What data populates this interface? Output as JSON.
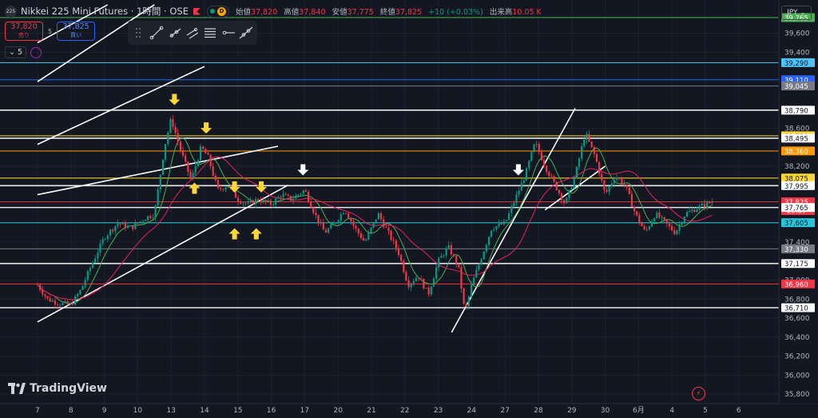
{
  "header": {
    "logo_text": "225",
    "symbol": "Nikkei 225 Mini Futures · 1時間 · OSE",
    "badge": "D",
    "open_label": "始値",
    "open": "37,820",
    "high_label": "高値",
    "high": "37,840",
    "low_label": "安値",
    "low": "37,775",
    "close_label": "終値",
    "close": "37,825",
    "change": "+10 (+0.03%)",
    "volume_label": "出来高",
    "volume": "10.05 K"
  },
  "trade": {
    "sell_price": "37,820",
    "sell_label": "売り",
    "spread": "5",
    "buy_price": "37,825",
    "buy_label": "買い"
  },
  "indicators": {
    "label": "5"
  },
  "currency": "JPY",
  "brand": "TradingView",
  "colors": {
    "background": "#131722",
    "up": "#089981",
    "down": "#f23645",
    "ma_fast": "#4caf50",
    "ma_slow": "#e91e63"
  },
  "chart_data": {
    "type": "candlestick",
    "y_range": [
      35700,
      39950
    ],
    "x_range": [
      0,
      22.2
    ],
    "x_ticks": [
      {
        "x": 0,
        "label": "7"
      },
      {
        "x": 1,
        "label": "8"
      },
      {
        "x": 2,
        "label": "9"
      },
      {
        "x": 3,
        "label": "10"
      },
      {
        "x": 4,
        "label": "13"
      },
      {
        "x": 5,
        "label": "14"
      },
      {
        "x": 6,
        "label": "15"
      },
      {
        "x": 7,
        "label": "16"
      },
      {
        "x": 8,
        "label": "17"
      },
      {
        "x": 9,
        "label": "20"
      },
      {
        "x": 10,
        "label": "21"
      },
      {
        "x": 11,
        "label": "22"
      },
      {
        "x": 12,
        "label": "23"
      },
      {
        "x": 13,
        "label": "24"
      },
      {
        "x": 14,
        "label": "27"
      },
      {
        "x": 15,
        "label": "28"
      },
      {
        "x": 16,
        "label": "29"
      },
      {
        "x": 17,
        "label": "30"
      },
      {
        "x": 18,
        "label": "6月"
      },
      {
        "x": 19,
        "label": "4"
      },
      {
        "x": 20,
        "label": "5"
      },
      {
        "x": 21,
        "label": "6"
      }
    ],
    "y_ticks": [
      39600,
      39400,
      38800,
      38600,
      38200,
      38000,
      37800,
      37600,
      37400,
      37000,
      36800,
      36600,
      36400,
      36200,
      36000,
      35800
    ],
    "axis_labels": [
      {
        "label": "39,765",
        "value": 39765,
        "color": "#4caf50"
      },
      {
        "label": "39,290",
        "value": 39290,
        "color": "#4fc3f7"
      },
      {
        "label": "39,110",
        "value": 39110,
        "color": "#2962ff"
      },
      {
        "label": "39,045",
        "value": 39045,
        "color": "#787b86"
      },
      {
        "label": "38,790",
        "value": 38790,
        "color": "#ffffff"
      },
      {
        "label": "38,520",
        "value": 38520,
        "color": "#fdd835"
      },
      {
        "label": "38,495",
        "value": 38495,
        "color": "#ffffff"
      },
      {
        "label": "38,360",
        "value": 38360,
        "color": "#ff9800"
      },
      {
        "label": "38,075",
        "value": 38075,
        "color": "#fdd835"
      },
      {
        "label": "37,995",
        "value": 37995,
        "color": "#ffffff"
      },
      {
        "label": "37,825",
        "value": 37825,
        "color": "#f23645",
        "sub": "29:37"
      },
      {
        "label": "37,765",
        "value": 37765,
        "color": "#ffffff"
      },
      {
        "label": "37,605",
        "value": 37605,
        "color": "#26c6da"
      },
      {
        "label": "37,330",
        "value": 37330,
        "color": "#787b86"
      },
      {
        "label": "37,175",
        "value": 37175,
        "color": "#ffffff"
      },
      {
        "label": "36,960",
        "value": 36960,
        "color": "#f23645"
      },
      {
        "label": "36,710",
        "value": 36710,
        "color": "#ffffff"
      }
    ],
    "price_points": [
      [
        0.0,
        36950
      ],
      [
        0.3,
        36800
      ],
      [
        0.6,
        36760
      ],
      [
        1.0,
        36740
      ],
      [
        1.3,
        36900
      ],
      [
        1.6,
        37150
      ],
      [
        2.0,
        37450
      ],
      [
        2.4,
        37600
      ],
      [
        2.8,
        37550
      ],
      [
        3.2,
        37650
      ],
      [
        3.5,
        37700
      ],
      [
        3.8,
        38400
      ],
      [
        4.0,
        38700
      ],
      [
        4.3,
        38350
      ],
      [
        4.6,
        38050
      ],
      [
        4.9,
        38400
      ],
      [
        5.1,
        38300
      ],
      [
        5.4,
        37950
      ],
      [
        5.7,
        38000
      ],
      [
        6.0,
        37850
      ],
      [
        6.3,
        37800
      ],
      [
        6.6,
        37850
      ],
      [
        7.0,
        37800
      ],
      [
        7.3,
        37900
      ],
      [
        7.6,
        37850
      ],
      [
        8.0,
        37950
      ],
      [
        8.3,
        37700
      ],
      [
        8.6,
        37500
      ],
      [
        8.9,
        37600
      ],
      [
        9.2,
        37750
      ],
      [
        9.5,
        37550
      ],
      [
        9.8,
        37400
      ],
      [
        10.2,
        37700
      ],
      [
        10.5,
        37500
      ],
      [
        10.8,
        37300
      ],
      [
        11.1,
        36950
      ],
      [
        11.4,
        37050
      ],
      [
        11.7,
        36850
      ],
      [
        12.0,
        37200
      ],
      [
        12.3,
        37350
      ],
      [
        12.6,
        37150
      ],
      [
        12.8,
        36650
      ],
      [
        13.0,
        36950
      ],
      [
        13.3,
        37250
      ],
      [
        13.6,
        37550
      ],
      [
        14.0,
        37600
      ],
      [
        14.3,
        37850
      ],
      [
        14.6,
        38100
      ],
      [
        14.9,
        38450
      ],
      [
        15.2,
        38200
      ],
      [
        15.5,
        38000
      ],
      [
        15.8,
        37800
      ],
      [
        16.1,
        38100
      ],
      [
        16.4,
        38550
      ],
      [
        16.7,
        38300
      ],
      [
        17.0,
        37900
      ],
      [
        17.3,
        38100
      ],
      [
        17.6,
        38000
      ],
      [
        17.9,
        37700
      ],
      [
        18.2,
        37500
      ],
      [
        18.5,
        37700
      ],
      [
        18.8,
        37600
      ],
      [
        19.1,
        37500
      ],
      [
        19.4,
        37700
      ],
      [
        19.7,
        37750
      ],
      [
        20.0,
        37800
      ],
      [
        20.2,
        37825
      ]
    ],
    "arrows": [
      {
        "x": 4.1,
        "price": 38860,
        "dir": "down",
        "color": "#fdd835"
      },
      {
        "x": 5.05,
        "price": 38560,
        "dir": "down",
        "color": "#fdd835"
      },
      {
        "x": 4.7,
        "price": 38010,
        "dir": "up",
        "color": "#fdd835"
      },
      {
        "x": 5.9,
        "price": 37940,
        "dir": "down",
        "color": "#fdd835"
      },
      {
        "x": 6.7,
        "price": 37940,
        "dir": "down",
        "color": "#fdd835"
      },
      {
        "x": 5.9,
        "price": 37530,
        "dir": "up",
        "color": "#fdd835"
      },
      {
        "x": 6.55,
        "price": 37530,
        "dir": "up",
        "color": "#fdd835"
      },
      {
        "x": 7.95,
        "price": 38120,
        "dir": "down",
        "color": "#ffffff"
      },
      {
        "x": 14.4,
        "price": 38120,
        "dir": "down",
        "color": "#ffffff"
      }
    ],
    "trend_lines": [
      [
        [
          0.0,
          37900
        ],
        [
          7.2,
          38410
        ]
      ],
      [
        [
          0.0,
          36560
        ],
        [
          7.5,
          38000
        ]
      ],
      [
        [
          0.0,
          38430
        ],
        [
          5.0,
          39250
        ]
      ],
      [
        [
          0.0,
          39090
        ],
        [
          3.5,
          39900
        ]
      ],
      [
        [
          0.0,
          39500
        ],
        [
          2.1,
          39900
        ]
      ],
      [
        [
          12.4,
          36450
        ],
        [
          16.1,
          38810
        ]
      ],
      [
        [
          15.2,
          37740
        ],
        [
          17.0,
          38200
        ]
      ]
    ]
  }
}
